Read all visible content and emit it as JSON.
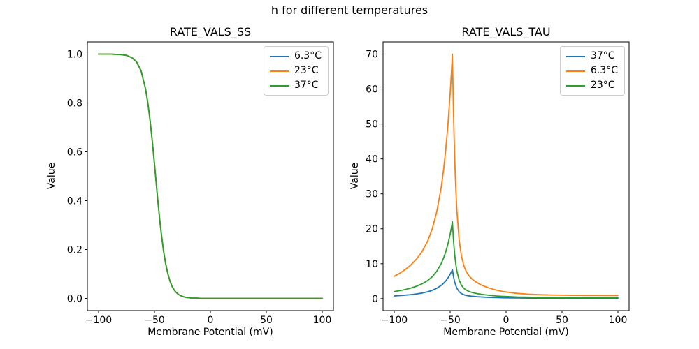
{
  "figure": {
    "suptitle": "h for different temperatures",
    "background": "#ffffff"
  },
  "chart_data": [
    {
      "type": "line",
      "title": "RATE_VALS_SS",
      "xlabel": "Membrane Potential (mV)",
      "ylabel": "Value",
      "xlim": [
        -110,
        110
      ],
      "ylim": [
        -0.05,
        1.05
      ],
      "xticks": [
        -100,
        -50,
        0,
        50,
        100
      ],
      "xtick_labels": [
        "−100",
        "−50",
        "0",
        "50",
        "100"
      ],
      "yticks": [
        0,
        0.2,
        0.4,
        0.6,
        0.8,
        1.0
      ],
      "ytick_labels": [
        "0.0",
        "0.2",
        "0.4",
        "0.6",
        "0.8",
        "1.0"
      ],
      "grid": false,
      "legend_position": "upper right",
      "x": [
        -100,
        -95,
        -90,
        -85,
        -80,
        -75,
        -70,
        -66,
        -62,
        -58,
        -56,
        -54,
        -52,
        -50,
        -49,
        -48,
        -47,
        -46,
        -45,
        -44,
        -42,
        -40,
        -38,
        -36,
        -34,
        -32,
        -30,
        -28,
        -26,
        -24,
        -22,
        -20,
        -16,
        -12,
        -8,
        -4,
        0,
        10,
        20,
        30,
        40,
        50,
        60,
        70,
        80,
        90,
        100
      ],
      "series": [
        {
          "name": "6.3°C",
          "color": "#1f77b4",
          "values": [
            1.0,
            1.0,
            1.0,
            0.999,
            0.998,
            0.995,
            0.985,
            0.968,
            0.932,
            0.858,
            0.802,
            0.731,
            0.646,
            0.55,
            0.5,
            0.45,
            0.401,
            0.354,
            0.31,
            0.269,
            0.198,
            0.142,
            0.1,
            0.069,
            0.047,
            0.032,
            0.022,
            0.015,
            0.01,
            0.007,
            0.004,
            0.003,
            0.001,
            0.001,
            0.0,
            0.0,
            0.0,
            0.0,
            0.0,
            0.0,
            0.0,
            0.0,
            0.0,
            0.0,
            0.0,
            0.0,
            0.0
          ]
        },
        {
          "name": "23°C",
          "color": "#ff7f0e",
          "values": [
            1.0,
            1.0,
            1.0,
            0.999,
            0.998,
            0.995,
            0.985,
            0.968,
            0.932,
            0.858,
            0.802,
            0.731,
            0.646,
            0.55,
            0.5,
            0.45,
            0.401,
            0.354,
            0.31,
            0.269,
            0.198,
            0.142,
            0.1,
            0.069,
            0.047,
            0.032,
            0.022,
            0.015,
            0.01,
            0.007,
            0.004,
            0.003,
            0.001,
            0.001,
            0.0,
            0.0,
            0.0,
            0.0,
            0.0,
            0.0,
            0.0,
            0.0,
            0.0,
            0.0,
            0.0,
            0.0,
            0.0
          ]
        },
        {
          "name": "37°C",
          "color": "#2ca02c",
          "values": [
            1.0,
            1.0,
            1.0,
            0.999,
            0.998,
            0.995,
            0.985,
            0.968,
            0.932,
            0.858,
            0.802,
            0.731,
            0.646,
            0.55,
            0.5,
            0.45,
            0.401,
            0.354,
            0.31,
            0.269,
            0.198,
            0.142,
            0.1,
            0.069,
            0.047,
            0.032,
            0.022,
            0.015,
            0.01,
            0.007,
            0.004,
            0.003,
            0.001,
            0.001,
            0.0,
            0.0,
            0.0,
            0.0,
            0.0,
            0.0,
            0.0,
            0.0,
            0.0,
            0.0,
            0.0,
            0.0,
            0.0
          ]
        }
      ]
    },
    {
      "type": "line",
      "title": "RATE_VALS_TAU",
      "xlabel": "Membrane Potential (mV)",
      "ylabel": "Value",
      "xlim": [
        -110,
        110
      ],
      "ylim": [
        -3.43,
        73.5
      ],
      "xticks": [
        -100,
        -50,
        0,
        50,
        100
      ],
      "xtick_labels": [
        "−100",
        "−50",
        "0",
        "50",
        "100"
      ],
      "yticks": [
        0,
        10,
        20,
        30,
        40,
        50,
        60,
        70
      ],
      "ytick_labels": [
        "0",
        "10",
        "20",
        "30",
        "40",
        "50",
        "60",
        "70"
      ],
      "grid": false,
      "legend_position": "upper right",
      "x": [
        -100,
        -95,
        -90,
        -85,
        -80,
        -75,
        -70,
        -66,
        -62,
        -58,
        -56,
        -54,
        -52,
        -50,
        -49,
        -48,
        -47,
        -46,
        -45,
        -44,
        -42,
        -40,
        -38,
        -36,
        -34,
        -32,
        -30,
        -28,
        -26,
        -24,
        -22,
        -20,
        -16,
        -12,
        -8,
        -4,
        0,
        10,
        20,
        30,
        40,
        50,
        60,
        70,
        80,
        90,
        100
      ],
      "series": [
        {
          "name": "37°C",
          "color": "#1f77b4",
          "values": [
            0.76,
            0.87,
            1.0,
            1.15,
            1.35,
            1.61,
            1.97,
            2.38,
            2.96,
            3.79,
            4.36,
            5.05,
            5.91,
            6.99,
            7.62,
            8.33,
            6.31,
            4.84,
            3.78,
            3.0,
            2.01,
            1.47,
            1.15,
            0.95,
            0.82,
            0.73,
            0.66,
            0.6,
            0.55,
            0.5,
            0.47,
            0.43,
            0.37,
            0.32,
            0.28,
            0.25,
            0.23,
            0.18,
            0.15,
            0.13,
            0.12,
            0.12,
            0.11,
            0.11,
            0.11,
            0.11,
            0.11
          ]
        },
        {
          "name": "6.3°C",
          "color": "#ff7f0e",
          "values": [
            6.4,
            7.29,
            8.36,
            9.68,
            11.35,
            13.54,
            16.58,
            20.0,
            24.83,
            31.86,
            36.59,
            42.43,
            49.66,
            58.69,
            64.02,
            70.0,
            52.99,
            40.68,
            31.74,
            25.22,
            16.91,
            12.33,
            9.64,
            8.0,
            6.91,
            6.12,
            5.51,
            5.02,
            4.6,
            4.23,
            3.91,
            3.62,
            3.12,
            2.72,
            2.39,
            2.12,
            1.9,
            1.51,
            1.27,
            1.12,
            1.04,
            0.98,
            0.95,
            0.93,
            0.92,
            0.91,
            0.91
          ]
        },
        {
          "name": "23°C",
          "color": "#2ca02c",
          "values": [
            2.01,
            2.29,
            2.63,
            3.04,
            3.57,
            4.26,
            5.21,
            6.29,
            7.81,
            10.02,
            11.51,
            13.34,
            15.62,
            18.46,
            20.13,
            22.01,
            16.66,
            12.79,
            9.98,
            7.93,
            5.32,
            3.88,
            3.03,
            2.52,
            2.17,
            1.92,
            1.73,
            1.58,
            1.45,
            1.33,
            1.23,
            1.14,
            0.98,
            0.86,
            0.75,
            0.67,
            0.6,
            0.47,
            0.4,
            0.35,
            0.33,
            0.31,
            0.3,
            0.29,
            0.29,
            0.29,
            0.29
          ]
        }
      ]
    }
  ]
}
